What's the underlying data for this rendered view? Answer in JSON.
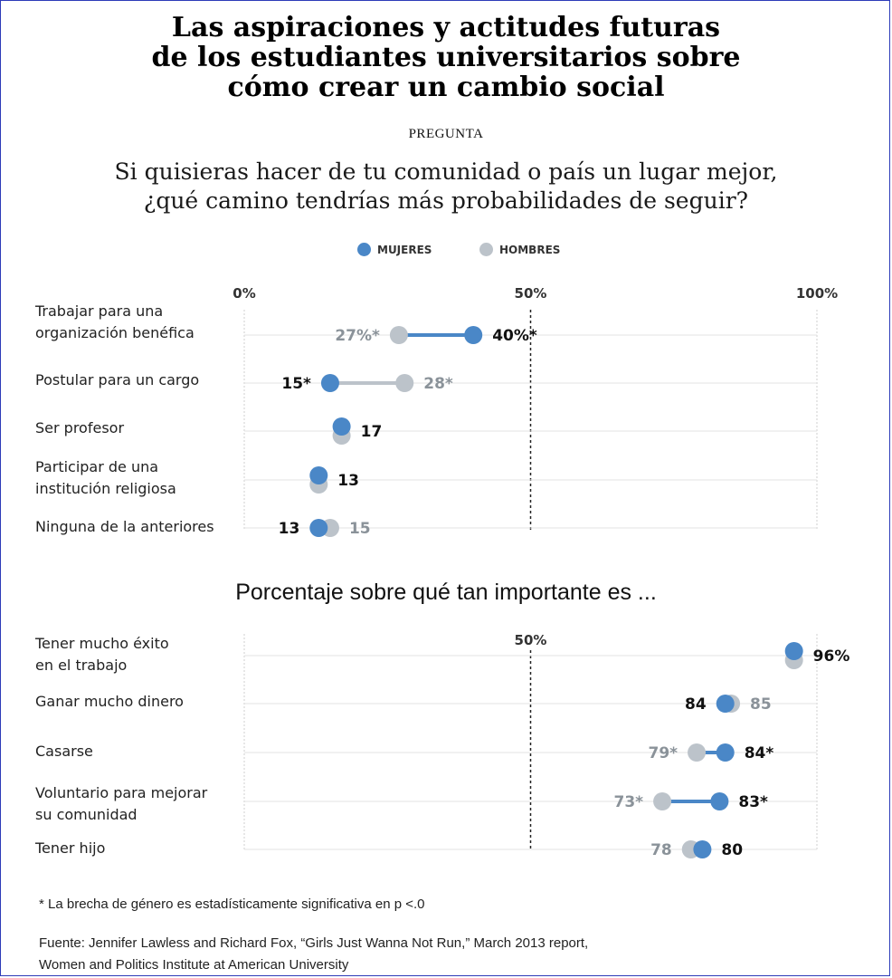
{
  "title_lines": [
    "Las aspiraciones y actitudes futuras",
    "de los estudiantes universitarios sobre",
    "cómo crear un cambio social"
  ],
  "kicker": "PREGUNTA",
  "question_lines": [
    "Si quisieras hacer de tu comunidad o país un lugar mejor,",
    "¿qué camino tendrías más probabilidades de seguir?"
  ],
  "legend": {
    "women": "MUJERES",
    "men": "HOMBRES"
  },
  "colors": {
    "women": "#4a87c7",
    "men": "#bcc3ca",
    "women_label": "#111111",
    "men_label": "#8a9299"
  },
  "subtitle": "Porcentaje sobre qué tan importante es ...",
  "chart_data": [
    {
      "type": "dot-plot",
      "x_ticks": [
        "0%",
        "50%",
        "100%"
      ],
      "xlim": [
        0,
        100
      ],
      "rows": [
        {
          "label_lines": [
            "Trabajar para una",
            "organización benéfica"
          ],
          "women": 40,
          "men": 27,
          "women_label": "40%*",
          "men_label": "27%*",
          "significant": true
        },
        {
          "label_lines": [
            "Postular para un cargo"
          ],
          "women": 15,
          "men": 28,
          "women_label": "15*",
          "men_label": "28*",
          "significant": true
        },
        {
          "label_lines": [
            "Ser profesor"
          ],
          "women": 17,
          "men": 17,
          "women_label": "17",
          "men_label": "",
          "significant": false
        },
        {
          "label_lines": [
            "Participar de una",
            "institución religiosa"
          ],
          "women": 13,
          "men": 13,
          "women_label": "13",
          "men_label": "",
          "significant": false
        },
        {
          "label_lines": [
            "Ninguna de la anteriores"
          ],
          "women": 13,
          "men": 15,
          "women_label": "13",
          "men_label": "15",
          "significant": false
        }
      ]
    },
    {
      "type": "dot-plot",
      "x_ticks": [
        "50%"
      ],
      "xlim": [
        0,
        100
      ],
      "rows": [
        {
          "label_lines": [
            "Tener mucho éxito",
            "en el trabajo"
          ],
          "women": 96,
          "men": 96,
          "women_label": "96%",
          "men_label": "",
          "significant": false
        },
        {
          "label_lines": [
            "Ganar mucho dinero"
          ],
          "women": 84,
          "men": 85,
          "women_label": "84",
          "men_label": "85",
          "significant": false
        },
        {
          "label_lines": [
            "Casarse"
          ],
          "women": 84,
          "men": 79,
          "women_label": "84*",
          "men_label": "79*",
          "significant": true
        },
        {
          "label_lines": [
            "Voluntario para mejorar",
            "su comunidad"
          ],
          "women": 83,
          "men": 73,
          "women_label": "83*",
          "men_label": "73*",
          "significant": true
        },
        {
          "label_lines": [
            "Tener hijo"
          ],
          "women": 80,
          "men": 78,
          "women_label": "80",
          "men_label": "78",
          "significant": false
        }
      ]
    }
  ],
  "footnotes": {
    "significance": "* La brecha de género es estadísticamente significativa en p <.0",
    "source_lines": [
      "Fuente: Jennifer Lawless and Richard Fox, “Girls Just Wanna Not Run,” March 2013 report,",
      "Women and Politics Institute at American University"
    ]
  }
}
